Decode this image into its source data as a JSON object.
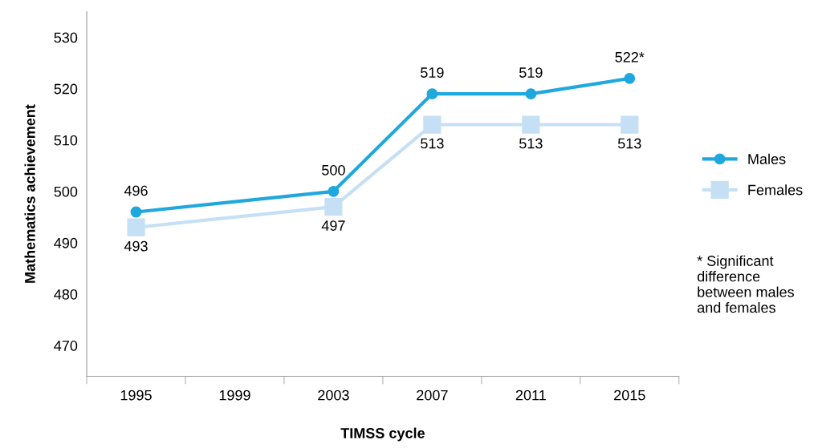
{
  "chart_data": {
    "type": "line",
    "xlabel": "TIMSS cycle",
    "ylabel": "Mathematics achievement",
    "categories": [
      "1995",
      "1999",
      "2003",
      "2007",
      "2011",
      "2015"
    ],
    "series": [
      {
        "name": "Males",
        "color": "#1fa8de",
        "marker": "circle",
        "values": [
          496,
          null,
          500,
          519,
          519,
          522
        ],
        "value_labels": [
          "496",
          null,
          "500",
          "519",
          "519",
          "522*"
        ]
      },
      {
        "name": "Females",
        "color": "#c5e0f4",
        "marker": "square",
        "values": [
          493,
          null,
          497,
          513,
          513,
          513
        ],
        "value_labels": [
          "493",
          null,
          "497",
          "513",
          "513",
          "513"
        ]
      }
    ],
    "ylim": [
      464,
      535
    ],
    "yticks": [
      470,
      480,
      490,
      500,
      510,
      520,
      530
    ],
    "grid": false,
    "legend": "right",
    "line_style": "solid",
    "annotations": [
      "* Significant difference between males and females"
    ]
  }
}
